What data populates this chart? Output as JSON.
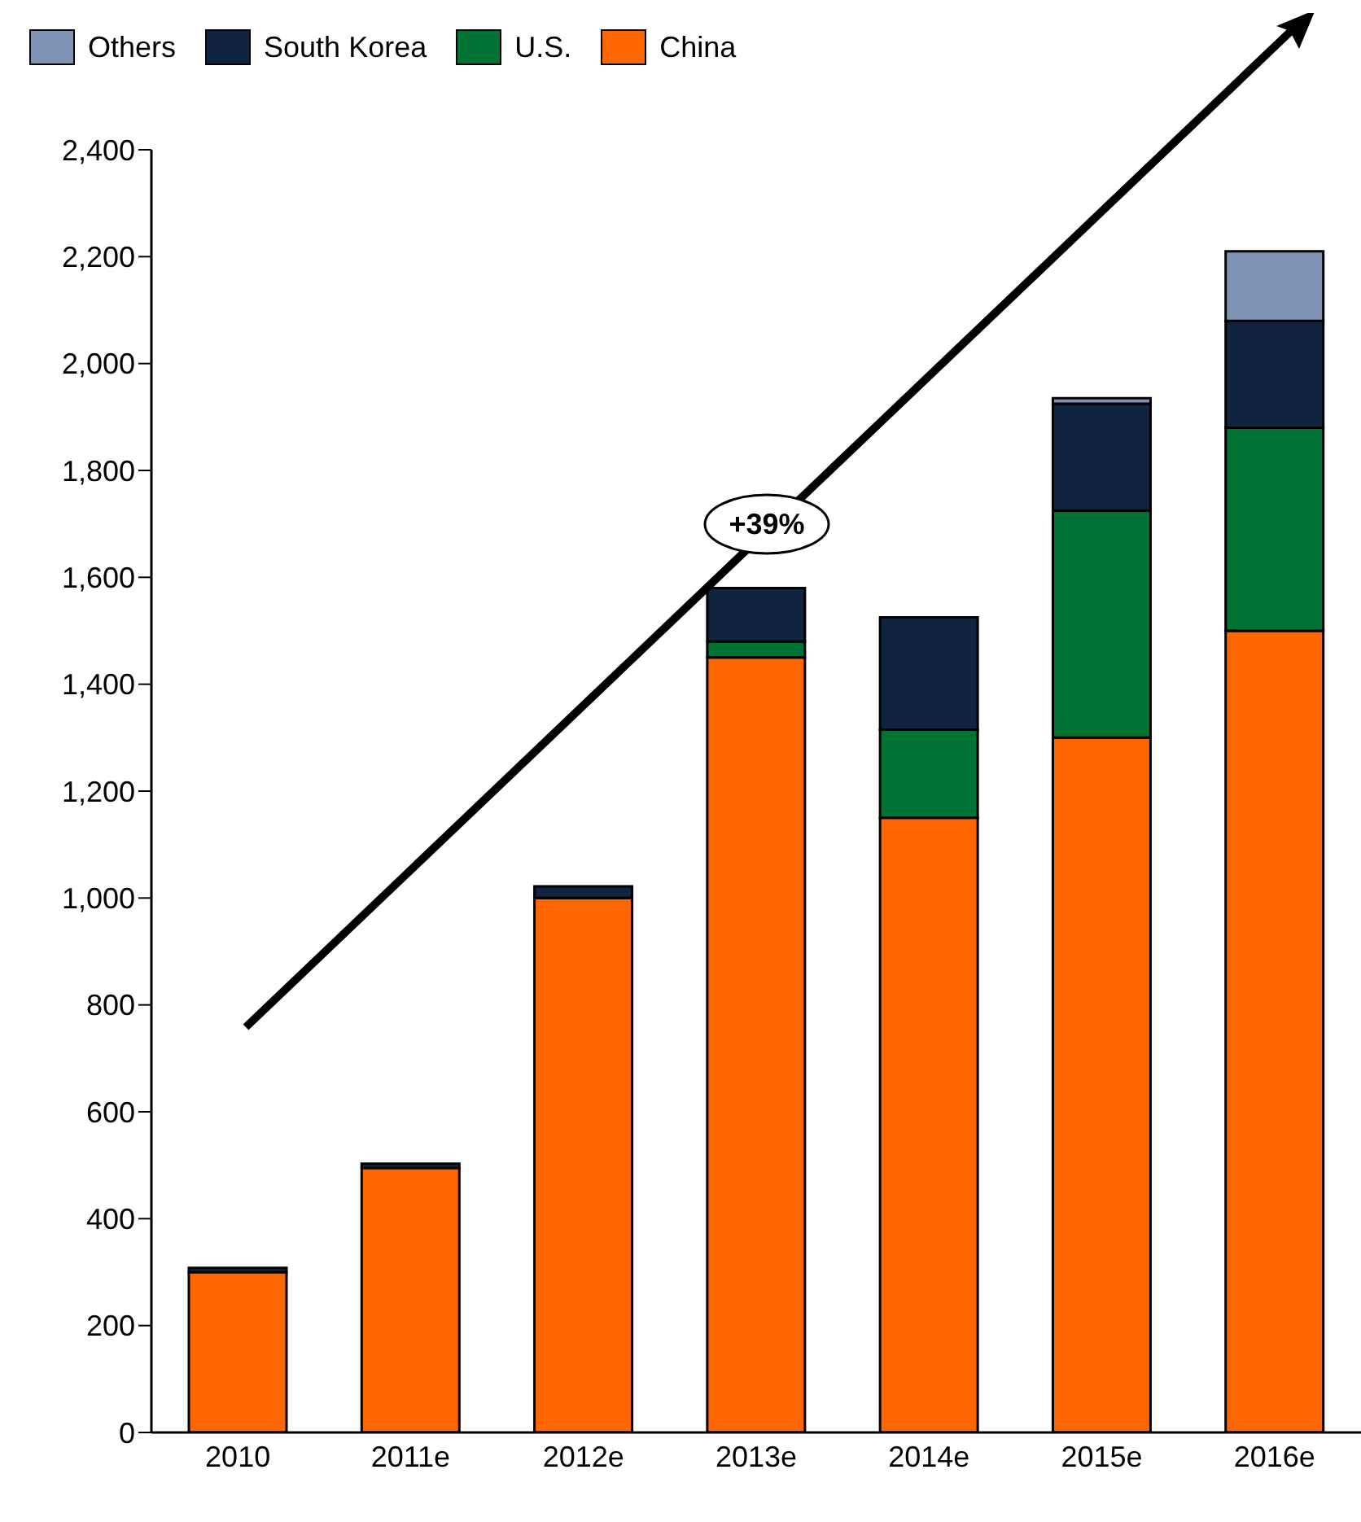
{
  "chart_data": {
    "type": "bar",
    "stacked": true,
    "categories": [
      "2010",
      "2011e",
      "2012e",
      "2013e",
      "2014e",
      "2015e",
      "2016e"
    ],
    "series": [
      {
        "name": "China",
        "color": "#ff6600",
        "values": [
          300,
          495,
          1000,
          1450,
          1150,
          1300,
          1500
        ]
      },
      {
        "name": "U.S.",
        "color": "#007233",
        "values": [
          0,
          0,
          0,
          30,
          165,
          425,
          380
        ]
      },
      {
        "name": "South Korea",
        "color": "#10233f",
        "values": [
          8,
          8,
          22,
          100,
          210,
          200,
          200
        ]
      },
      {
        "name": "Others",
        "color": "#7f93b5",
        "values": [
          0,
          0,
          0,
          0,
          0,
          10,
          130
        ]
      }
    ],
    "ylim": [
      0,
      2400
    ],
    "yticks": [
      {
        "value": 0,
        "label": "0"
      },
      {
        "value": 200,
        "label": "200"
      },
      {
        "value": 400,
        "label": "400"
      },
      {
        "value": 600,
        "label": "600"
      },
      {
        "value": 800,
        "label": "800"
      },
      {
        "value": 1000,
        "label": "1,000"
      },
      {
        "value": 1200,
        "label": "1,200"
      },
      {
        "value": 1400,
        "label": "1,400"
      },
      {
        "value": 1600,
        "label": "1,600"
      },
      {
        "value": 1800,
        "label": "1,800"
      },
      {
        "value": 2000,
        "label": "2,000"
      },
      {
        "value": 2200,
        "label": "2,200"
      },
      {
        "value": 2400,
        "label": "2,400"
      }
    ],
    "grid": false,
    "legend": "top left",
    "annotations": [
      "+39%"
    ]
  }
}
